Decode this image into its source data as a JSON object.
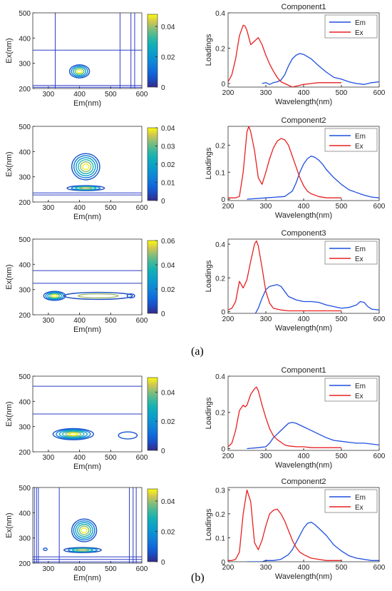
{
  "panel_labels": [
    "(a)",
    "(b)"
  ],
  "colors": {
    "em": "#1f4fe0",
    "ex": "#e82020",
    "contour_line": "#2a3cc8"
  },
  "chart_data": [
    {
      "id": "a1-contour",
      "type": "heatmap",
      "kind": "contour",
      "panel": "a",
      "xlabel": "Em(nm)",
      "ylabel": "Ex(nm)",
      "xlim": [
        250,
        600
      ],
      "ylim": [
        200,
        500
      ],
      "xticks": [
        300,
        400,
        500,
        600
      ],
      "yticks": [
        200,
        300,
        400,
        500
      ],
      "colorbar": {
        "max": 0.048,
        "ticks": [
          0,
          0.02,
          0.04
        ],
        "tick_labels": [
          "0",
          "0.02",
          "0.04"
        ]
      },
      "hlines": [
        352,
        212,
        205
      ],
      "vlines": [
        322,
        530,
        565,
        577
      ],
      "peaks": [
        {
          "em": 400,
          "ex": 268,
          "sx": 32,
          "sy": 26,
          "levels": 5
        }
      ]
    },
    {
      "id": "a1-loadings",
      "type": "line",
      "panel": "a",
      "title": "Component1",
      "xlabel": "Wavelength(nm)",
      "ylabel": "Loadings",
      "xlim": [
        200,
        600
      ],
      "ylim": [
        -0.02,
        0.4
      ],
      "xticks": [
        200,
        300,
        400,
        500,
        600
      ],
      "yticks": [
        0,
        0.2,
        0.4
      ],
      "ytick_labels": [
        "0",
        "0.2",
        "0.4"
      ],
      "legend": [
        "Em",
        "Ex"
      ],
      "series": [
        {
          "name": "Em",
          "x": [
            290,
            300,
            310,
            320,
            330,
            340,
            350,
            360,
            370,
            380,
            390,
            400,
            420,
            440,
            460,
            480,
            500,
            520,
            540,
            560,
            580,
            600
          ],
          "values": [
            0,
            0.005,
            -0.005,
            0.005,
            0.01,
            0.02,
            0.05,
            0.1,
            0.14,
            0.16,
            0.17,
            0.165,
            0.14,
            0.1,
            0.065,
            0.035,
            0.025,
            0.01,
            0,
            -0.005,
            0.005,
            0.01
          ]
        },
        {
          "name": "Ex",
          "x": [
            200,
            210,
            220,
            230,
            240,
            245,
            250,
            260,
            270,
            280,
            290,
            300,
            310,
            320,
            330,
            340,
            350,
            360,
            370,
            380,
            400,
            420,
            440,
            460,
            480,
            500
          ],
          "values": [
            0.01,
            0.05,
            0.14,
            0.27,
            0.33,
            0.325,
            0.3,
            0.22,
            0.24,
            0.26,
            0.22,
            0.16,
            0.11,
            0.07,
            0.035,
            0.01,
            0,
            -0.01,
            -0.02,
            -0.015,
            -0.005,
            0,
            0.005,
            0.005,
            0.005,
            0.005
          ]
        }
      ]
    },
    {
      "id": "a2-contour",
      "type": "heatmap",
      "kind": "contour",
      "panel": "a",
      "xlabel": "Em(nm)",
      "ylabel": "Ex(nm)",
      "xlim": [
        250,
        600
      ],
      "ylim": [
        200,
        500
      ],
      "xticks": [
        300,
        400,
        500,
        600
      ],
      "yticks": [
        200,
        300,
        400,
        500
      ],
      "colorbar": {
        "max": 0.04,
        "ticks": [
          0,
          0.01,
          0.02,
          0.03,
          0.04
        ],
        "tick_labels": [
          "0",
          "0.01",
          "0.02",
          "0.03",
          "0.04"
        ]
      },
      "hlines": [
        236,
        228
      ],
      "vlines": [],
      "peaks": [
        {
          "em": 420,
          "ex": 340,
          "sx": 45,
          "sy": 52,
          "levels": 6
        },
        {
          "em": 420,
          "ex": 255,
          "sx": 60,
          "sy": 10,
          "levels": 4
        }
      ]
    },
    {
      "id": "a2-loadings",
      "type": "line",
      "panel": "a",
      "title": "Component2",
      "xlabel": "Wavelength(nm)",
      "ylabel": "Loadings",
      "xlim": [
        200,
        600
      ],
      "ylim": [
        -0.005,
        0.27
      ],
      "xticks": [
        200,
        300,
        400,
        500,
        600
      ],
      "yticks": [
        0,
        0.1,
        0.2
      ],
      "ytick_labels": [
        "0",
        "0.1",
        "0.2"
      ],
      "legend": [
        "Em",
        "Ex"
      ],
      "series": [
        {
          "name": "Em",
          "x": [
            250,
            300,
            350,
            360,
            370,
            380,
            390,
            400,
            410,
            420,
            430,
            440,
            450,
            460,
            480,
            500,
            520,
            540,
            560,
            580,
            600
          ],
          "values": [
            0,
            0.005,
            0.01,
            0.02,
            0.03,
            0.06,
            0.1,
            0.13,
            0.15,
            0.16,
            0.155,
            0.145,
            0.13,
            0.11,
            0.08,
            0.055,
            0.035,
            0.025,
            0.015,
            0.008,
            0.005
          ]
        },
        {
          "name": "Ex",
          "x": [
            200,
            210,
            220,
            230,
            240,
            250,
            255,
            260,
            270,
            280,
            290,
            300,
            310,
            320,
            330,
            340,
            350,
            360,
            370,
            380,
            390,
            400,
            410,
            420,
            440,
            460,
            480,
            500
          ],
          "values": [
            0.005,
            0.005,
            0.005,
            0.01,
            0.1,
            0.25,
            0.27,
            0.25,
            0.18,
            0.08,
            0.055,
            0.1,
            0.15,
            0.19,
            0.215,
            0.225,
            0.22,
            0.2,
            0.16,
            0.12,
            0.08,
            0.05,
            0.03,
            0.02,
            0.01,
            0.005,
            0.005,
            0.005
          ]
        }
      ]
    },
    {
      "id": "a3-contour",
      "type": "heatmap",
      "kind": "contour",
      "panel": "a",
      "xlabel": "Em(nm)",
      "ylabel": "Ex(nm)",
      "xlim": [
        250,
        600
      ],
      "ylim": [
        200,
        500
      ],
      "xticks": [
        300,
        400,
        500,
        600
      ],
      "yticks": [
        200,
        300,
        400,
        500
      ],
      "colorbar": {
        "max": 0.06,
        "ticks": [
          0,
          0.02,
          0.04,
          0.06
        ],
        "tick_labels": [
          "0",
          "0.02",
          "0.04",
          "0.06"
        ]
      },
      "hlines": [
        375,
        325
      ],
      "vlines": [],
      "peaks": [
        {
          "em": 320,
          "ex": 275,
          "sx": 35,
          "sy": 18,
          "levels": 5
        },
        {
          "em": 460,
          "ex": 275,
          "sx": 110,
          "sy": 14,
          "levels": 2
        },
        {
          "em": 565,
          "ex": 275,
          "sx": 12,
          "sy": 8,
          "levels": 1
        }
      ]
    },
    {
      "id": "a3-loadings",
      "type": "line",
      "panel": "a",
      "title": "Component3",
      "xlabel": "Wavelength(nm)",
      "ylabel": "Loadings",
      "xlim": [
        200,
        600
      ],
      "ylim": [
        -0.01,
        0.43
      ],
      "xticks": [
        200,
        300,
        400,
        500,
        600
      ],
      "yticks": [
        0,
        0.2,
        0.4
      ],
      "ytick_labels": [
        "0",
        "0.2",
        "0.4"
      ],
      "legend": [
        "Em",
        "Ex"
      ],
      "series": [
        {
          "name": "Em",
          "x": [
            270,
            280,
            290,
            300,
            310,
            320,
            330,
            340,
            350,
            360,
            380,
            400,
            420,
            440,
            460,
            480,
            500,
            520,
            540,
            550,
            560,
            570,
            580,
            600
          ],
          "values": [
            -0.02,
            0.02,
            0.08,
            0.13,
            0.15,
            0.155,
            0.16,
            0.15,
            0.12,
            0.09,
            0.07,
            0.06,
            0.06,
            0.055,
            0.04,
            0.03,
            0.02,
            0.025,
            0.04,
            0.06,
            0.055,
            0.03,
            0.015,
            0.01
          ]
        },
        {
          "name": "Ex",
          "x": [
            200,
            210,
            220,
            230,
            240,
            250,
            260,
            270,
            275,
            280,
            290,
            300,
            310,
            320,
            340,
            360,
            380,
            400,
            420,
            440,
            460,
            480,
            500
          ],
          "values": [
            0.01,
            0.02,
            0.06,
            0.18,
            0.14,
            0.19,
            0.3,
            0.4,
            0.42,
            0.39,
            0.26,
            0.12,
            0.05,
            0.02,
            0.01,
            0.005,
            0.005,
            0.005,
            0.005,
            0.005,
            0.005,
            0.005,
            0.005
          ]
        }
      ]
    },
    {
      "id": "b1-contour",
      "type": "heatmap",
      "kind": "contour",
      "panel": "b",
      "xlabel": "Em(nm)",
      "ylabel": "Ex(nm)",
      "xlim": [
        250,
        600
      ],
      "ylim": [
        200,
        500
      ],
      "xticks": [
        300,
        400,
        500,
        600
      ],
      "yticks": [
        200,
        300,
        400,
        500
      ],
      "colorbar": {
        "max": 0.05,
        "ticks": [
          0,
          0.02,
          0.04
        ],
        "tick_labels": [
          "0",
          "0.02",
          "0.04"
        ]
      },
      "hlines": [
        460,
        350
      ],
      "vlines": [],
      "peaks": [
        {
          "em": 380,
          "ex": 270,
          "sx": 65,
          "sy": 22,
          "levels": 6
        },
        {
          "em": 555,
          "ex": 265,
          "sx": 30,
          "sy": 14,
          "levels": 1
        }
      ]
    },
    {
      "id": "b1-loadings",
      "type": "line",
      "panel": "b",
      "title": "Component1",
      "xlabel": "Wavelength(nm)",
      "ylabel": "Loadings",
      "xlim": [
        200,
        600
      ],
      "ylim": [
        -0.01,
        0.4
      ],
      "xticks": [
        200,
        300,
        400,
        500,
        600
      ],
      "yticks": [
        0,
        0.2,
        0.4
      ],
      "ytick_labels": [
        "0",
        "0.2",
        "0.4"
      ],
      "legend": [
        "Em",
        "Ex"
      ],
      "series": [
        {
          "name": "Em",
          "x": [
            250,
            280,
            300,
            310,
            320,
            330,
            340,
            350,
            360,
            370,
            380,
            400,
            420,
            440,
            460,
            480,
            500,
            520,
            540,
            560,
            580,
            600
          ],
          "values": [
            0,
            0.005,
            0.01,
            0.03,
            0.06,
            0.08,
            0.1,
            0.12,
            0.14,
            0.145,
            0.14,
            0.12,
            0.1,
            0.08,
            0.06,
            0.045,
            0.04,
            0.035,
            0.03,
            0.03,
            0.025,
            0.02
          ]
        },
        {
          "name": "Ex",
          "x": [
            200,
            210,
            220,
            230,
            240,
            245,
            250,
            260,
            270,
            275,
            280,
            290,
            300,
            310,
            320,
            330,
            340,
            350,
            360,
            380,
            400,
            420,
            440,
            460,
            480,
            500
          ],
          "values": [
            0.01,
            0.03,
            0.1,
            0.21,
            0.24,
            0.23,
            0.24,
            0.3,
            0.33,
            0.34,
            0.32,
            0.24,
            0.17,
            0.11,
            0.07,
            0.05,
            0.035,
            0.02,
            0.015,
            0.01,
            0.01,
            0.005,
            0.005,
            0.005,
            0.005,
            0.005
          ]
        }
      ]
    },
    {
      "id": "b2-contour",
      "type": "heatmap",
      "kind": "contour",
      "panel": "b",
      "xlabel": "Em(nm)",
      "ylabel": "Ex(nm)",
      "xlim": [
        250,
        600
      ],
      "ylim": [
        200,
        500
      ],
      "xticks": [
        300,
        400,
        500,
        600
      ],
      "yticks": [
        200,
        300,
        400,
        500
      ],
      "colorbar": {
        "max": 0.048,
        "ticks": [
          0,
          0.02,
          0.04
        ],
        "tick_labels": [
          "0",
          "0.02",
          "0.04"
        ]
      },
      "hlines": [
        225,
        215,
        205
      ],
      "vlines": [
        255,
        262,
        268,
        335,
        560,
        572,
        582
      ],
      "peaks": [
        {
          "em": 415,
          "ex": 330,
          "sx": 40,
          "sy": 45,
          "levels": 6
        },
        {
          "em": 410,
          "ex": 252,
          "sx": 60,
          "sy": 10,
          "levels": 4
        },
        {
          "em": 290,
          "ex": 255,
          "sx": 6,
          "sy": 5,
          "levels": 1
        }
      ]
    },
    {
      "id": "b2-loadings",
      "type": "line",
      "panel": "b",
      "title": "Component2",
      "xlabel": "Wavelength(nm)",
      "ylabel": "Loadings",
      "xlim": [
        200,
        600
      ],
      "ylim": [
        0,
        0.31
      ],
      "xticks": [
        200,
        300,
        400,
        500,
        600
      ],
      "yticks": [
        0,
        0.1,
        0.2,
        0.3
      ],
      "ytick_labels": [
        "0",
        "0.1",
        "0.2",
        "0.3"
      ],
      "legend": [
        "Em",
        "Ex"
      ],
      "series": [
        {
          "name": "Em",
          "x": [
            250,
            290,
            300,
            320,
            340,
            360,
            370,
            380,
            390,
            400,
            410,
            420,
            430,
            440,
            460,
            480,
            500,
            520,
            540,
            560,
            580,
            600
          ],
          "values": [
            0,
            0,
            0.005,
            0.005,
            0.01,
            0.03,
            0.05,
            0.08,
            0.11,
            0.14,
            0.16,
            0.165,
            0.155,
            0.14,
            0.11,
            0.07,
            0.045,
            0.025,
            0.015,
            0.01,
            0.005,
            0.005
          ]
        },
        {
          "name": "Ex",
          "x": [
            200,
            210,
            220,
            230,
            240,
            250,
            260,
            270,
            280,
            290,
            300,
            310,
            320,
            330,
            340,
            350,
            360,
            370,
            380,
            390,
            400,
            420,
            440,
            460,
            480,
            500
          ],
          "values": [
            0.005,
            0.005,
            0.01,
            0.04,
            0.2,
            0.3,
            0.25,
            0.08,
            0.05,
            0.09,
            0.15,
            0.2,
            0.215,
            0.22,
            0.2,
            0.17,
            0.13,
            0.09,
            0.06,
            0.04,
            0.03,
            0.015,
            0.01,
            0.005,
            0.005,
            0.005
          ]
        }
      ]
    }
  ]
}
